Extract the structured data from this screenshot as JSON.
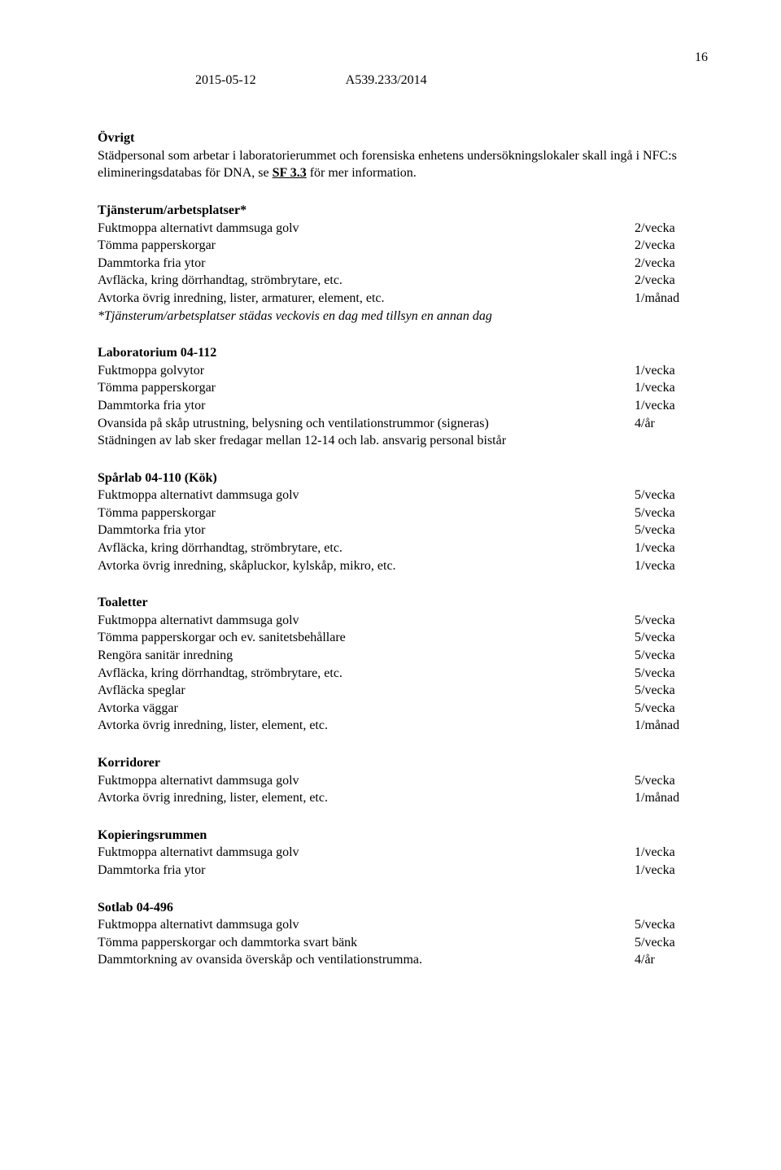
{
  "page_number": "16",
  "header": {
    "date": "2015-05-12",
    "case": "A539.233/2014"
  },
  "intro": {
    "title": "Övrigt",
    "text_pre": "Städpersonal som arbetar i laboratorierummet och forensiska enhetens undersökningslokaler skall ingå i NFC:s elimineringsdatabas för DNA, se ",
    "link": "SF 3.3",
    "text_post": " för mer information."
  },
  "sections": [
    {
      "title": "Tjänsterum/arbetsplatser*",
      "rows": [
        {
          "label": "Fuktmoppa alternativt dammsuga golv",
          "freq": "2/vecka"
        },
        {
          "label": "Tömma papperskorgar",
          "freq": "2/vecka"
        },
        {
          "label": "Dammtorka fria ytor",
          "freq": "2/vecka"
        },
        {
          "label": "Avfläcka, kring dörrhandtag, strömbrytare, etc.",
          "freq": "2/vecka"
        },
        {
          "label": "Avtorka övrig inredning, lister, armaturer, element, etc.",
          "freq": "1/månad"
        }
      ],
      "note_italic": "*Tjänsterum/arbetsplatser städas veckovis en dag med tillsyn en annan dag"
    },
    {
      "title": "Laboratorium 04-112",
      "rows": [
        {
          "label": "Fuktmoppa golvytor",
          "freq": "1/vecka"
        },
        {
          "label": "Tömma papperskorgar",
          "freq": "1/vecka"
        },
        {
          "label": "Dammtorka fria ytor",
          "freq": "1/vecka"
        },
        {
          "label": "Ovansida på skåp utrustning, belysning och ventilationstrummor (signeras)",
          "freq": "4/år"
        }
      ],
      "trailing": "Städningen av lab sker fredagar mellan 12-14 och lab. ansvarig personal bistår"
    },
    {
      "title": "Spårlab 04-110 (Kök)",
      "rows": [
        {
          "label": "Fuktmoppa alternativt dammsuga golv",
          "freq": "5/vecka"
        },
        {
          "label": "Tömma papperskorgar",
          "freq": "5/vecka"
        },
        {
          "label": "Dammtorka fria ytor",
          "freq": "5/vecka"
        },
        {
          "label": "Avfläcka, kring dörrhandtag, strömbrytare, etc.",
          "freq": "1/vecka"
        },
        {
          "label": "Avtorka övrig inredning, skåpluckor, kylskåp, mikro, etc.",
          "freq": "1/vecka"
        }
      ]
    },
    {
      "title": "Toaletter",
      "rows": [
        {
          "label": "Fuktmoppa alternativt dammsuga golv",
          "freq": "5/vecka"
        },
        {
          "label": "Tömma papperskorgar och ev. sanitetsbehållare",
          "freq": "5/vecka"
        },
        {
          "label": "Rengöra sanitär inredning",
          "freq": "5/vecka"
        },
        {
          "label": "Avfläcka, kring dörrhandtag, strömbrytare, etc.",
          "freq": "5/vecka"
        },
        {
          "label": "Avfläcka speglar",
          "freq": "5/vecka"
        },
        {
          "label": "Avtorka väggar",
          "freq": "5/vecka"
        },
        {
          "label": "Avtorka övrig inredning, lister, element, etc.",
          "freq": "1/månad"
        }
      ]
    },
    {
      "title": "Korridorer",
      "rows": [
        {
          "label": "Fuktmoppa alternativt dammsuga golv",
          "freq": "5/vecka"
        },
        {
          "label": "Avtorka övrig inredning, lister, element, etc.",
          "freq": "1/månad"
        }
      ]
    },
    {
      "title": "Kopieringsrummen",
      "rows": [
        {
          "label": "Fuktmoppa alternativt dammsuga golv",
          "freq": "1/vecka"
        },
        {
          "label": "Dammtorka fria ytor",
          "freq": "1/vecka"
        }
      ]
    },
    {
      "title": "Sotlab 04-496",
      "rows": [
        {
          "label": "Fuktmoppa alternativt dammsuga golv",
          "freq": "5/vecka"
        },
        {
          "label": "Tömma papperskorgar och dammtorka svart bänk",
          "freq": "5/vecka"
        },
        {
          "label": "Dammtorkning av ovansida överskåp och ventilationstrumma.",
          "freq": "4/år"
        }
      ]
    }
  ]
}
